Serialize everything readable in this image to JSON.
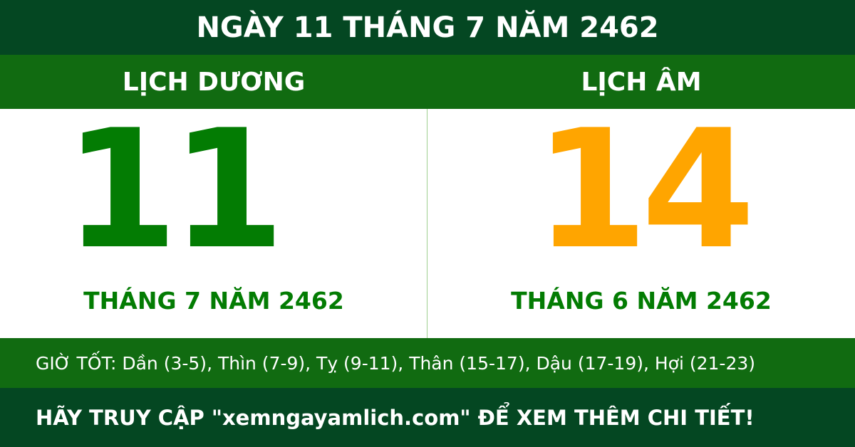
{
  "title": "NGÀY 11 THÁNG 7 NĂM 2462",
  "solar": {
    "label": "LỊCH DƯƠNG",
    "day": "11",
    "month_year": "THÁNG 7 NĂM 2462"
  },
  "lunar": {
    "label": "LỊCH ÂM",
    "day": "14",
    "month_year": "THÁNG 6 NĂM 2462"
  },
  "good_hours": "GIỜ TỐT: Dần (3-5), Thìn (7-9), Tỵ (9-11), Thân (15-17), Dậu (17-19), Hợi (21-23)",
  "footer": "HÃY TRUY CẬP \"xemngayamlich.com\" ĐỂ XEM THÊM CHI TIẾT!",
  "colors": {
    "dark_green": "#044722",
    "green": "#116b11",
    "digit_green": "#037c03",
    "orange": "#ffa500"
  }
}
